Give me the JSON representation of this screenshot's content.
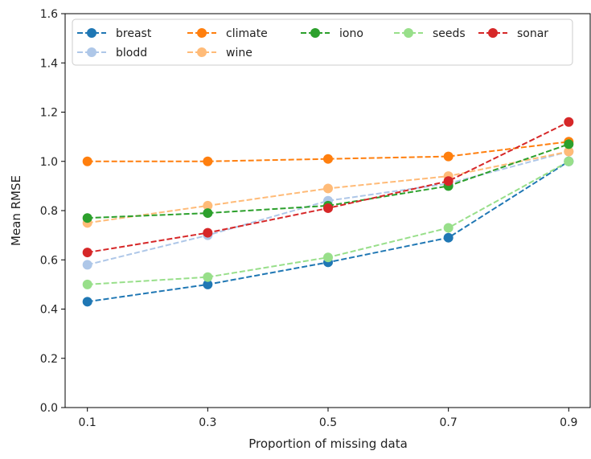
{
  "chart_data": {
    "type": "line",
    "title": "",
    "xlabel": "Proportion of missing data",
    "ylabel": "Mean RMSE",
    "x": [
      0.1,
      0.3,
      0.5,
      0.7,
      0.9
    ],
    "x_tick_labels": [
      "0.1",
      "0.3",
      "0.5",
      "0.7",
      "0.9"
    ],
    "ylim": [
      0.0,
      1.6
    ],
    "y_ticks": [
      0.0,
      0.2,
      0.4,
      0.6,
      0.8,
      1.0,
      1.2,
      1.4,
      1.6
    ],
    "y_tick_labels": [
      "0.0",
      "0.2",
      "0.4",
      "0.6",
      "0.8",
      "1.0",
      "1.2",
      "1.4",
      "1.6"
    ],
    "grid": false,
    "legend_position": "top",
    "legend_columns": 5,
    "series": [
      {
        "name": "breast",
        "color": "#1f77b4",
        "values": [
          0.43,
          0.5,
          0.59,
          0.69,
          1.0
        ]
      },
      {
        "name": "blodd",
        "color": "#aec7e8",
        "values": [
          0.58,
          0.7,
          0.84,
          0.91,
          1.04
        ]
      },
      {
        "name": "climate",
        "color": "#ff7f0e",
        "values": [
          1.0,
          1.0,
          1.01,
          1.02,
          1.08
        ]
      },
      {
        "name": "wine",
        "color": "#ffbb78",
        "values": [
          0.75,
          0.82,
          0.89,
          0.94,
          1.04
        ]
      },
      {
        "name": "iono",
        "color": "#2ca02c",
        "values": [
          0.77,
          0.79,
          0.82,
          0.9,
          1.07
        ]
      },
      {
        "name": "seeds",
        "color": "#98df8a",
        "values": [
          0.5,
          0.53,
          0.61,
          0.73,
          1.0
        ]
      },
      {
        "name": "sonar",
        "color": "#d62728",
        "values": [
          0.63,
          0.71,
          0.81,
          0.92,
          1.16
        ]
      }
    ],
    "legend_order": [
      "breast",
      "climate",
      "iono",
      "seeds",
      "sonar",
      "blodd",
      "wine"
    ]
  }
}
